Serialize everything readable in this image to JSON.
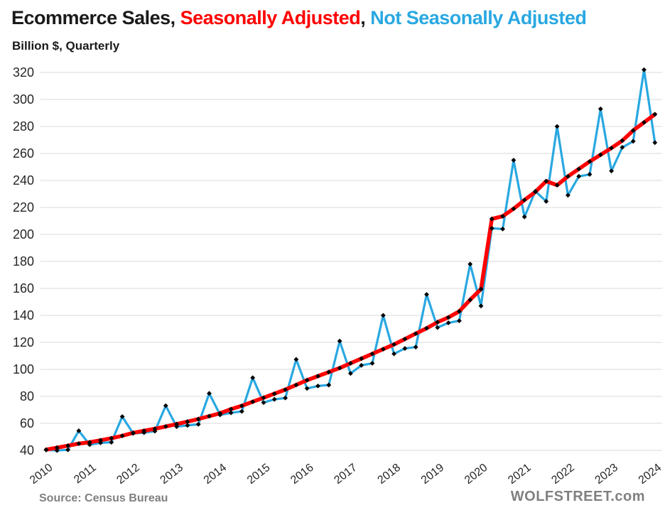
{
  "title": {
    "black1": "Ecommerce Sales, ",
    "red": "Seasonally Adjusted",
    "black2": ", ",
    "blue": "Not Seasonally Adjusted"
  },
  "subtitle": "Billion $, Quarterly",
  "footer": {
    "source": "Source: Census Bureau",
    "brand": "WOLFSTREET.com"
  },
  "colors": {
    "sa_line": "#ff0000",
    "nsa_line": "#29a8e1",
    "marker": "#000000",
    "grid": "#d9d9d9",
    "text": "#1a1a1a",
    "muted_text": "#808080"
  },
  "chart_data": {
    "type": "line",
    "title": "Ecommerce Sales, Seasonally Adjusted, Not Seasonally Adjusted",
    "ylabel": "Billion $, Quarterly",
    "frequency": "quarterly",
    "x_start": "2010 Q1",
    "x_end": "2024 Q1",
    "ylim": [
      40,
      320
    ],
    "grid": "horizontal",
    "legend_position": "in-title",
    "y_ticks": [
      40,
      60,
      80,
      100,
      120,
      140,
      160,
      180,
      200,
      220,
      240,
      260,
      280,
      300,
      320
    ],
    "x_ticks": [
      "2010",
      "2011",
      "2012",
      "2013",
      "2014",
      "2015",
      "2016",
      "2017",
      "2018",
      "2019",
      "2020",
      "2021",
      "2022",
      "2023",
      "2024"
    ],
    "series": [
      {
        "name": "Seasonally Adjusted",
        "color": "#ff0000",
        "marker": "diamond",
        "values": [
          40.5,
          42.0,
          43.5,
          45.0,
          46.0,
          47.5,
          49.0,
          50.8,
          53.0,
          54.5,
          56.0,
          57.7,
          59.5,
          61.3,
          63.2,
          65.3,
          67.5,
          70.5,
          73.0,
          76.0,
          79.0,
          82.0,
          85.0,
          88.5,
          92.0,
          95.0,
          98.0,
          101.0,
          104.5,
          108.0,
          111.5,
          115.0,
          118.5,
          122.5,
          126.5,
          130.5,
          135.0,
          138.5,
          143.0,
          151.5,
          159.5,
          211.5,
          213.5,
          219.0,
          225.5,
          231.5,
          239.5,
          236.5,
          243.0,
          248.5,
          254.0,
          259.0,
          264.0,
          269.5,
          277.0,
          283.0,
          289.0
        ]
      },
      {
        "name": "Not Seasonally Adjusted",
        "color": "#29a8e1",
        "marker": "diamond",
        "values": [
          40.3,
          39.9,
          40.4,
          54.5,
          44.2,
          45.6,
          46.0,
          65.0,
          52.6,
          53.1,
          54.2,
          73.1,
          57.6,
          58.5,
          59.3,
          82.2,
          66.3,
          67.8,
          68.9,
          93.8,
          75.4,
          77.8,
          78.8,
          107.4,
          85.9,
          87.7,
          88.4,
          121.0,
          97.0,
          103.0,
          104.5,
          140.0,
          111.5,
          115.5,
          116.5,
          155.5,
          131.0,
          134.5,
          136.0,
          178.0,
          147.0,
          204.5,
          204.0,
          255.0,
          213.0,
          232.0,
          224.5,
          280.0,
          229.0,
          243.0,
          244.5,
          293.0,
          247.0,
          264.5,
          269.0,
          322.0,
          268.0
        ]
      }
    ]
  }
}
